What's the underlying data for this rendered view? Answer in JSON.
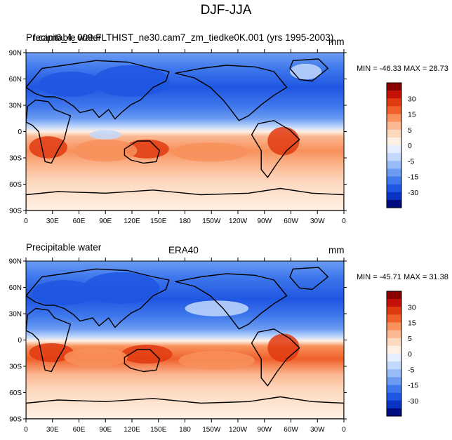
{
  "figure": {
    "title": "DJF-JJA",
    "panels": [
      {
        "left_title": "Precipitable water",
        "center_title": "f.cam6_4_009.FLTHIST_ne30.cam7_zm_tiedke0K.001 (yrs 1995-2003)",
        "units": "mm",
        "min_max": "MIN = -46.33 MAX =  28.73"
      },
      {
        "left_title": "Precipitable water",
        "center_title": "ERA40",
        "units": "mm",
        "min_max": "MIN = -45.71 MAX = 31.38"
      }
    ],
    "lat_labels": [
      "90N",
      "60N",
      "30N",
      "0",
      "30S",
      "60S",
      "90S"
    ],
    "lon_labels": [
      "0",
      "30E",
      "60E",
      "90E",
      "120E",
      "150E",
      "180",
      "150W",
      "120W",
      "90W",
      "60W",
      "30W",
      "0"
    ],
    "colorbar": {
      "labels": [
        "30",
        "15",
        "5",
        "0",
        "-5",
        "-15",
        "-30"
      ],
      "colors": [
        "#8b0000",
        "#c41208",
        "#e03a10",
        "#f0602a",
        "#f8915c",
        "#fbb892",
        "#fdd9c0",
        "#fff0e4",
        "#e5efff",
        "#c2d8fc",
        "#98bcf8",
        "#6c9cf2",
        "#3f78ec",
        "#1f56e2",
        "#0c34c4",
        "#000d80"
      ]
    },
    "colors": {
      "ocean_positive_1": "#fdd9c0",
      "ocean_positive_2": "#f8915c",
      "ocean_positive_3": "#e03a10",
      "ocean_negative_1": "#c2d8fc",
      "ocean_negative_2": "#6c9cf2",
      "ocean_negative_3": "#1f56e2",
      "coastline": "#000000"
    }
  }
}
